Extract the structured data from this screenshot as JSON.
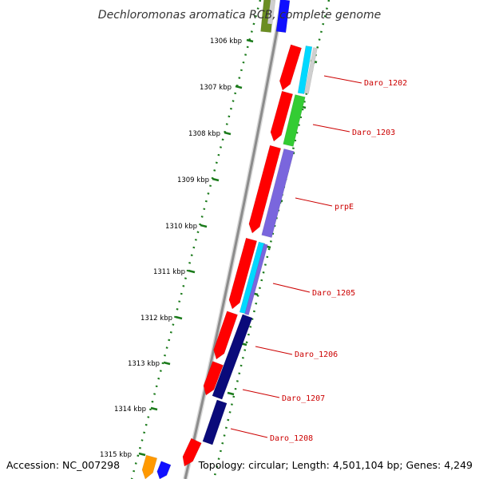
{
  "title": "Dechloromonas aromatica RCB, complete genome",
  "accession": "Accession: NC_007298",
  "topology_info": "Topology: circular; Length: 4,501,104 bp; Genes: 4,249",
  "ticks": [
    {
      "label": "1306 kbp"
    },
    {
      "label": "1307 kbp"
    },
    {
      "label": "1308 kbp"
    },
    {
      "label": "1309 kbp"
    },
    {
      "label": "1310 kbp"
    },
    {
      "label": "1311 kbp"
    },
    {
      "label": "1312 kbp"
    },
    {
      "label": "1313 kbp"
    },
    {
      "label": "1314 kbp"
    },
    {
      "label": "1315 kbp"
    }
  ],
  "gene_labels": [
    {
      "name": "Daro_1202"
    },
    {
      "name": "Daro_1203"
    },
    {
      "name": "prpE"
    },
    {
      "name": "Daro_1205"
    },
    {
      "name": "Daro_1206"
    },
    {
      "name": "Daro_1207"
    },
    {
      "name": "Daro_1208"
    }
  ],
  "colors": {
    "backbone": "#8c8c8c",
    "forward_gene": "#ff0000",
    "tick_green": "#1a7a1a",
    "label_red": "#cc0000",
    "cyan": "#00d8ff",
    "lightgray": "#cfcfcf",
    "green": "#33cc33",
    "purple": "#7a66dd",
    "navy": "#0a0a7a",
    "orange": "#ff9900",
    "blue": "#1010ff",
    "olive": "#6b8e23"
  }
}
